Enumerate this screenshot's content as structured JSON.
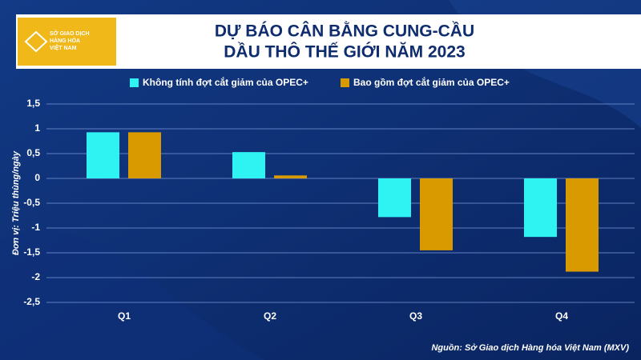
{
  "chart_data": {
    "type": "bar",
    "title": [
      "DỰ BÁO CÂN BẰNG CUNG-CẦU",
      "DẦU THÔ THẾ GIỚI NĂM 2023"
    ],
    "logo_text": [
      "SỞ GIAO DỊCH",
      "HÀNG HÓA",
      "VIỆT NAM"
    ],
    "y_label": "Đơn vị: Triệu thùng/ngày",
    "source": "Nguồn: Sở Giao dịch Hàng hóa Việt Nam (MXV)",
    "categories": [
      "Q1",
      "Q2",
      "Q3",
      "Q4"
    ],
    "series": [
      {
        "name": "Không tính đợt cắt giảm của OPEC+",
        "color": "#2ff2f2",
        "values": [
          0.93,
          0.53,
          -0.78,
          -1.18
        ]
      },
      {
        "name": "Bao gồm đợt cắt giảm của OPEC+",
        "color": "#d99a00",
        "values": [
          0.93,
          0.06,
          -1.45,
          -1.88
        ]
      }
    ],
    "ylim": [
      -2.5,
      1.5
    ],
    "yticks": [
      {
        "value": 1.5,
        "label": "1,5"
      },
      1,
      {
        "value": 0.5,
        "label": "0,5"
      },
      0,
      {
        "value": -0.5,
        "label": "-0,5"
      },
      -1,
      {
        "value": -1.5,
        "label": "-1,5"
      },
      -2,
      {
        "value": -2.5,
        "label": "-2,5"
      }
    ],
    "grid": true
  }
}
